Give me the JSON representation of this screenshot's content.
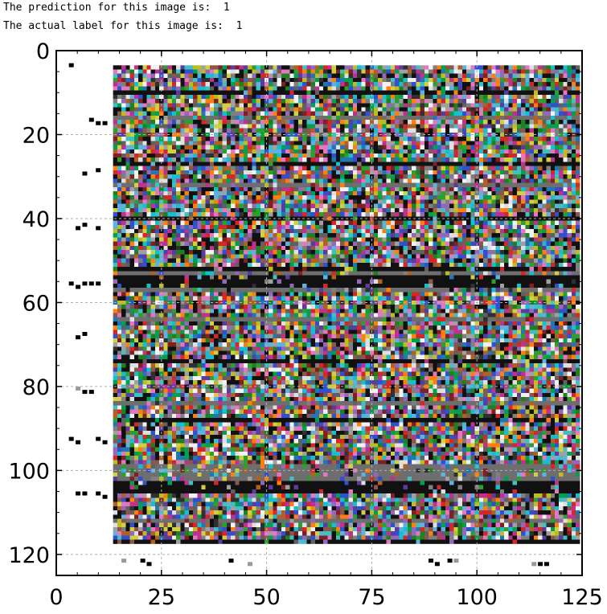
{
  "output": {
    "line1": "The prediction for this image is:  1",
    "line2": "The actual label for this image is:  1"
  },
  "chart_data": {
    "type": "heatmap",
    "title": "",
    "xlabel": "",
    "ylabel": "",
    "xlim": [
      0,
      125
    ],
    "ylim": [
      125,
      0
    ],
    "xticks": [
      0,
      25,
      50,
      75,
      100,
      125
    ],
    "yticks": [
      0,
      20,
      40,
      60,
      80,
      100,
      120
    ],
    "grid": true,
    "image_extent_data": {
      "x0": 13.5,
      "x1": 124.5,
      "y0": 3.5,
      "y1": 117.5
    },
    "dark_band_rows": [
      10,
      27,
      40,
      52,
      54,
      55,
      56,
      74,
      88,
      103,
      104,
      105,
      117
    ],
    "gray_band_rows": [
      16,
      32,
      53,
      57,
      64,
      84,
      99,
      100,
      101,
      102,
      112
    ],
    "colors": {
      "background": "#ffffff",
      "axis": "#000000",
      "grid": "#b0b0b0",
      "dark_band": "#111111",
      "gray_band": "#6e6e6e"
    }
  }
}
